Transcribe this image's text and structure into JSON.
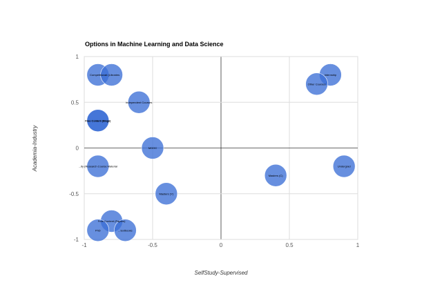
{
  "chart_data": {
    "type": "scatter",
    "title": "Options in Machine Learning and Data Science",
    "xlabel": "SelfStudy-Supervised",
    "ylabel": "Academia-Industry",
    "xlim": [
      -1,
      1
    ],
    "ylim": [
      -1,
      1
    ],
    "x_ticks": [
      "-1",
      "-0.5",
      "0",
      "0.5",
      "1"
    ],
    "y_ticks": [
      "1",
      "0.5",
      "0",
      "-0.5",
      "-1"
    ],
    "grid": true,
    "legend": "none",
    "colors": {
      "bubble": "#3c6fd6",
      "grid": "#dddddd",
      "zero_line": "#333333"
    },
    "points": [
      {
        "label": "Competitions",
        "x": -0.9,
        "y": 0.8
      },
      {
        "label": "...ti (Libraries",
        "x": -0.8,
        "y": 0.8
      },
      {
        "label": "Independent Courses",
        "x": -0.6,
        "y": 0.5
      },
      {
        "label": "Free Content (Blogs)",
        "x": -0.9,
        "y": 0.3
      },
      {
        "label": "Free Content (Blogs)",
        "x": -0.9,
        "y": 0.3
      },
      {
        "label": "MOOC",
        "x": -0.5,
        "y": 0.0
      },
      {
        "label": "...ity (Research Course Material",
        "x": -0.9,
        "y": -0.2
      },
      {
        "label": "Masters (Y)",
        "x": -0.4,
        "y": -0.5
      },
      {
        "label": "Free Content (Papers)",
        "x": -0.8,
        "y": -0.8
      },
      {
        "label": "PhD",
        "x": -0.9,
        "y": -0.9
      },
      {
        "label": "...textbooks",
        "x": -0.7,
        "y": -0.9
      },
      {
        "label": "Internship",
        "x": 0.8,
        "y": 0.8
      },
      {
        "label": "Other Courses",
        "x": 0.7,
        "y": 0.7
      },
      {
        "label": "Masters (C)",
        "x": 0.4,
        "y": -0.3
      },
      {
        "label": "Undergrad",
        "x": 0.9,
        "y": -0.2
      }
    ]
  }
}
